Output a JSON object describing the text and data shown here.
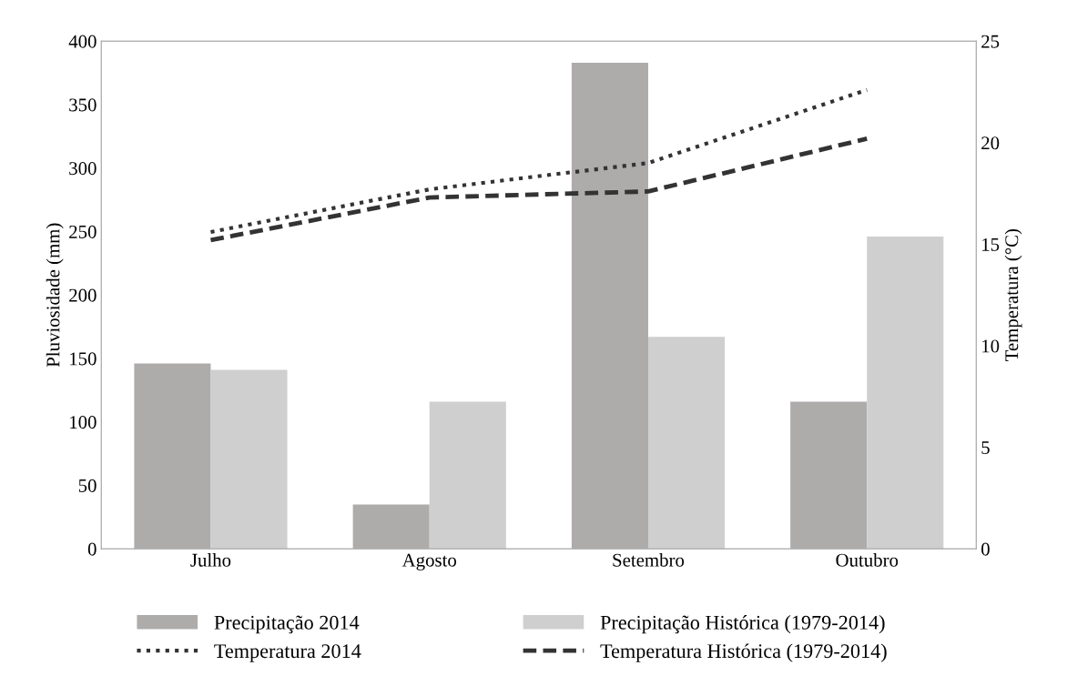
{
  "chart_data": {
    "type": "bar",
    "categories": [
      "Julho",
      "Agosto",
      "Setembro",
      "Outubro"
    ],
    "ylabel": "Pluviosidade (mm)",
    "y2label": "Temperatura (°C)",
    "ylim": [
      0,
      400
    ],
    "yticks": [
      0,
      50,
      100,
      150,
      200,
      250,
      300,
      350,
      400
    ],
    "y2lim": [
      0,
      25
    ],
    "y2ticks": [
      0,
      5,
      10,
      15,
      20,
      25
    ],
    "grid": false,
    "legend": "bottom",
    "series": [
      {
        "name": "Precipitação 2014",
        "color": "#aeabab",
        "values": [
          146,
          35,
          383,
          116
        ]
      },
      {
        "name": "Precipitação Histórica (1979-2014)",
        "color": "#d0cfcf",
        "values": [
          141,
          116,
          167,
          246
        ]
      },
      {
        "name": "Temperatura 2014",
        "type": "line",
        "axis": "y2",
        "color": "#333333",
        "line_style": "dotted",
        "values": [
          15.6,
          17.7,
          19.0,
          22.6
        ]
      },
      {
        "name": "Temperatura Histórica (1979-2014)",
        "type": "line",
        "axis": "y2",
        "color": "#333333",
        "line_style": "dashed",
        "values": [
          15.2,
          17.3,
          17.6,
          20.2
        ]
      }
    ]
  }
}
